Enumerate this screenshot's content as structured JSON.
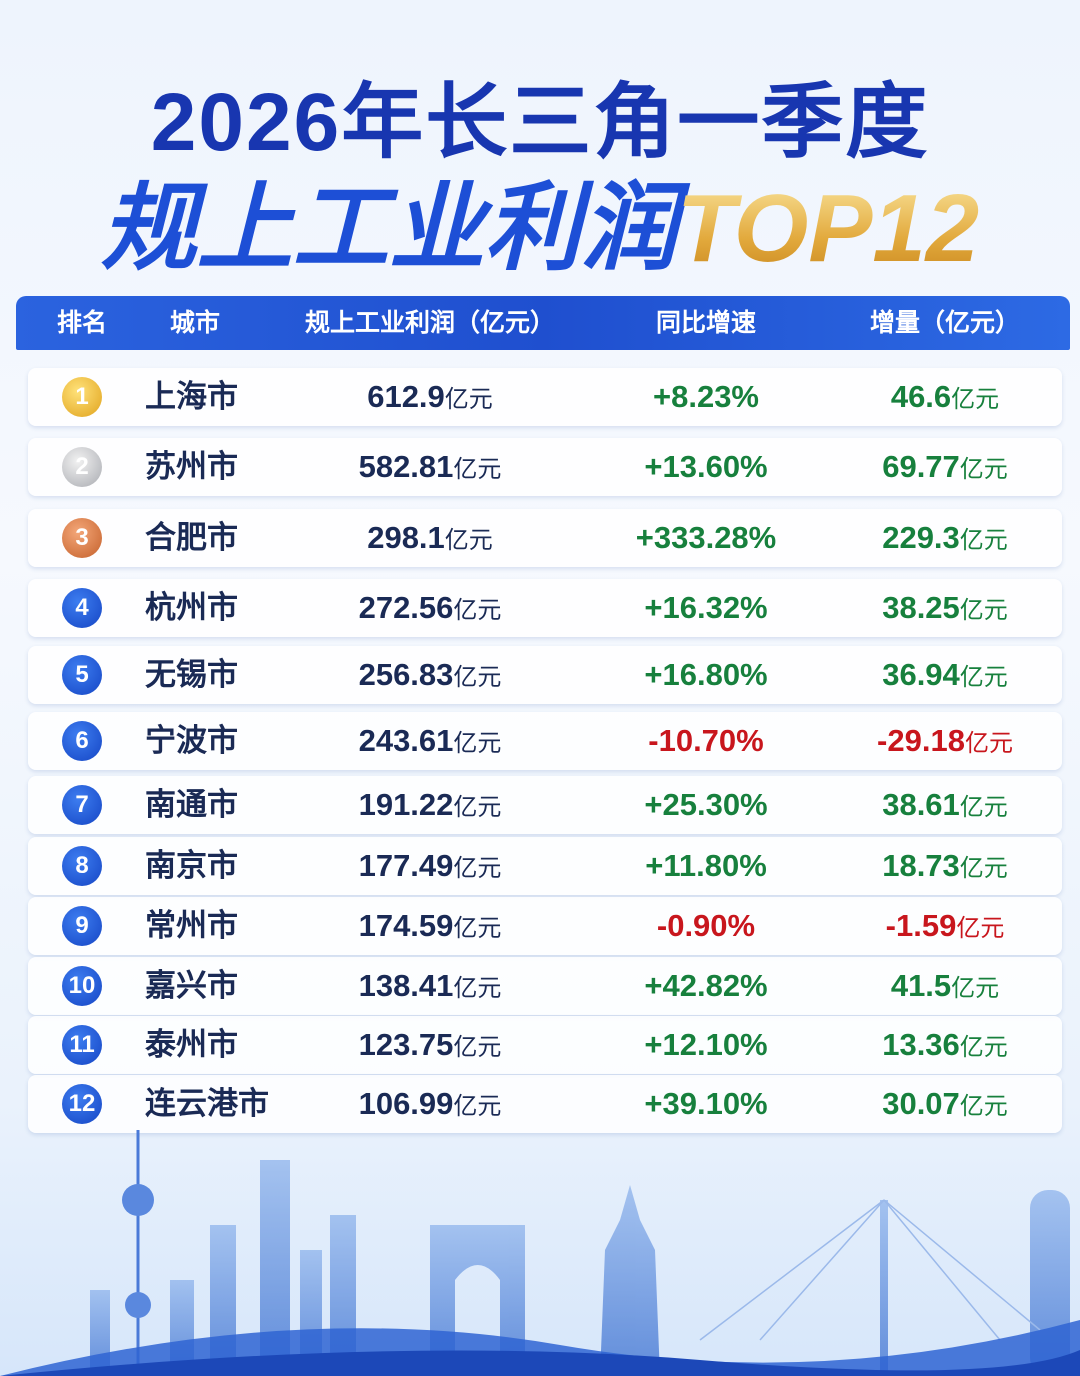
{
  "title": {
    "line1": "2026年长三角一季度",
    "line2": "规上工业利润",
    "line2_highlight": "TOP12"
  },
  "table": {
    "header": [
      "排名",
      "城市",
      "规上工业利润（亿元）",
      "同比增速",
      "增量（亿元）"
    ],
    "unit": "亿元",
    "rows": [
      {
        "rank": "1",
        "city": "上海市",
        "profit": "612.9",
        "growth": "+8.23%",
        "increase": "46.6"
      },
      {
        "rank": "2",
        "city": "苏州市",
        "profit": "582.81",
        "growth": "+13.60%",
        "increase": "69.77"
      },
      {
        "rank": "3",
        "city": "合肥市",
        "profit": "298.1",
        "growth": "+333.28%",
        "increase": "229.3"
      },
      {
        "rank": "4",
        "city": "杭州市",
        "profit": "272.56",
        "growth": "+16.32%",
        "increase": "38.25"
      },
      {
        "rank": "5",
        "city": "无锡市",
        "profit": "256.83",
        "growth": "+16.80%",
        "increase": "36.94"
      },
      {
        "rank": "6",
        "city": "宁波市",
        "profit": "243.61",
        "growth": "-10.70%",
        "increase": "-29.18"
      },
      {
        "rank": "7",
        "city": "南通市",
        "profit": "191.22",
        "growth": "+25.30%",
        "increase": "38.61"
      },
      {
        "rank": "8",
        "city": "南京市",
        "profit": "177.49",
        "growth": "+11.80%",
        "increase": "18.73"
      },
      {
        "rank": "9",
        "city": "常州市",
        "profit": "174.59",
        "growth": "-0.90%",
        "increase": "-1.59"
      },
      {
        "rank": "10",
        "city": "嘉兴市",
        "profit": "138.41",
        "growth": "+42.82%",
        "increase": "41.5"
      },
      {
        "rank": "11",
        "city": "泰州市",
        "profit": "123.75",
        "growth": "+12.10%",
        "increase": "13.36"
      },
      {
        "rank": "12",
        "city": "连云港市",
        "profit": "106.99",
        "growth": "+39.10%",
        "increase": "30.07"
      }
    ]
  }
}
